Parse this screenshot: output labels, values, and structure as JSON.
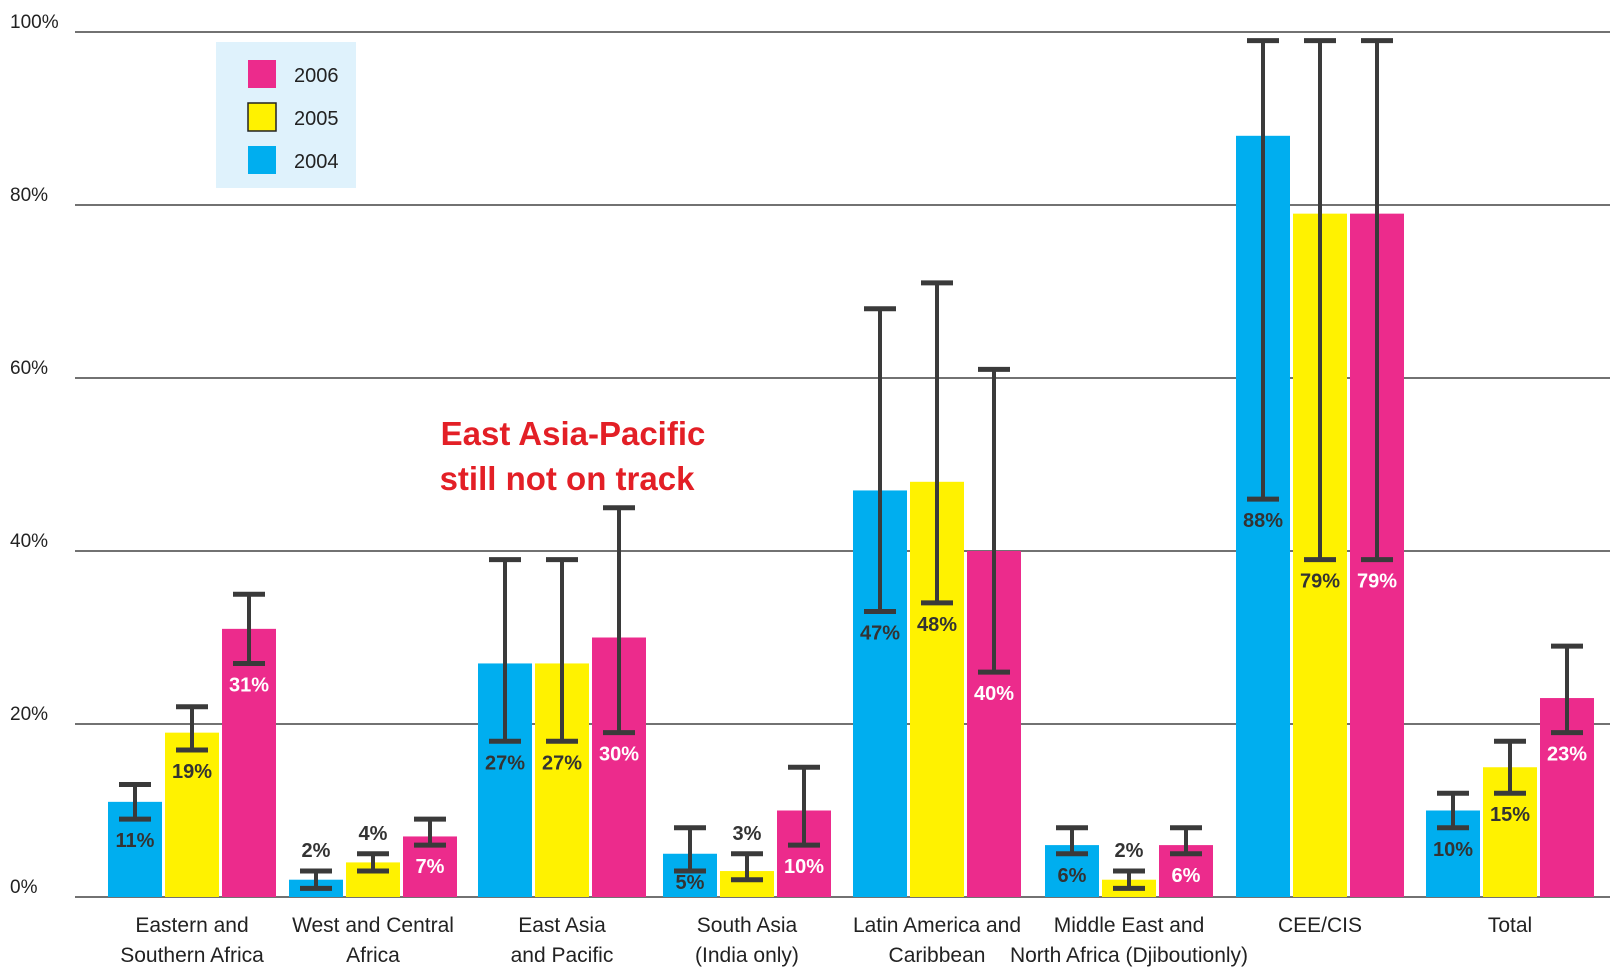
{
  "chart_data": {
    "type": "bar",
    "title": "",
    "xlabel": "",
    "ylabel": "",
    "ylim": [
      0,
      100
    ],
    "yticks": [
      "0%",
      "20%",
      "40%",
      "60%",
      "80%",
      "100%"
    ],
    "grid": true,
    "legend_position": "top-left",
    "categories": [
      [
        "Eastern and",
        "Southern Africa"
      ],
      [
        "West and Central",
        "Africa"
      ],
      [
        "East Asia",
        "and Pacific"
      ],
      [
        "South Asia",
        "(India only)"
      ],
      [
        "Latin America and",
        "Caribbean"
      ],
      [
        "Middle East and",
        "North Africa (Djiboutionly)"
      ],
      [
        "CEE/CIS"
      ],
      [
        "Total"
      ]
    ],
    "series": [
      {
        "name": "2004",
        "color": "#00aeef",
        "values": [
          11,
          2,
          27,
          5,
          47,
          6,
          88,
          10
        ],
        "labels": [
          "11%",
          "2%",
          "27%",
          "5%",
          "47%",
          "6%",
          "88%",
          "10%"
        ],
        "err_low": [
          9,
          1,
          18,
          3,
          33,
          5,
          46,
          8
        ],
        "err_high": [
          13,
          3,
          39,
          8,
          68,
          8,
          99,
          12
        ]
      },
      {
        "name": "2005",
        "color": "#fff200",
        "values": [
          19,
          4,
          27,
          3,
          48,
          2,
          79,
          15
        ],
        "labels": [
          "19%",
          "4%",
          "27%",
          "3%",
          "48%",
          "2%",
          "79%",
          "15%"
        ],
        "err_low": [
          17,
          3,
          18,
          2,
          34,
          1,
          39,
          12
        ],
        "err_high": [
          22,
          5,
          39,
          5,
          71,
          3,
          99,
          18
        ]
      },
      {
        "name": "2006",
        "color": "#ec2b8c",
        "values": [
          31,
          7,
          30,
          10,
          40,
          6,
          79,
          23
        ],
        "labels": [
          "31%",
          "7%",
          "30%",
          "10%",
          "40%",
          "6%",
          "79%",
          "23%"
        ],
        "err_low": [
          27,
          6,
          19,
          6,
          26,
          5,
          39,
          19
        ],
        "err_high": [
          35,
          9,
          45,
          15,
          61,
          8,
          99,
          29
        ]
      }
    ],
    "legend_order": [
      "2006",
      "2005",
      "2004"
    ],
    "annotation": [
      "East Asia-Pacific",
      "still not on track"
    ]
  }
}
